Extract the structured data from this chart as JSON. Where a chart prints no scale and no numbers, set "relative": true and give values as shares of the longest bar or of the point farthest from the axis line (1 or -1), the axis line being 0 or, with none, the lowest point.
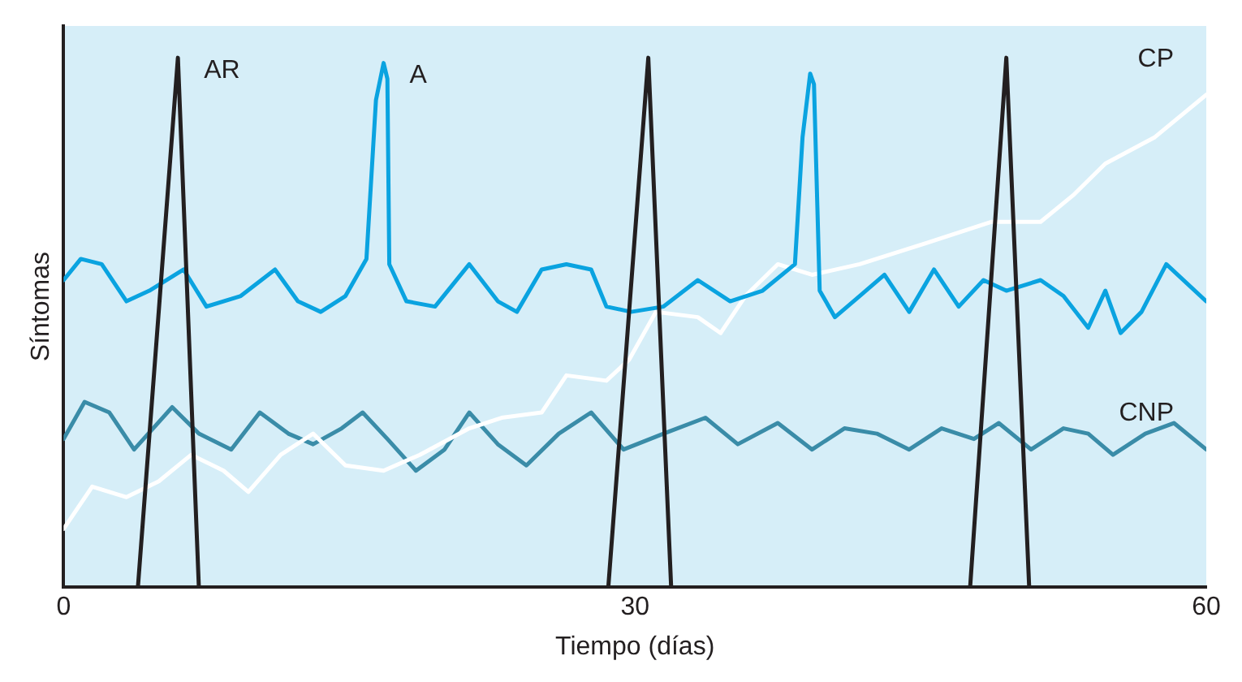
{
  "chart_data": {
    "type": "line",
    "xlabel": "Tiempo (días)",
    "ylabel": "Síntomas",
    "relative": true,
    "xlim": [
      0,
      60
    ],
    "xticks": [
      0,
      30,
      60
    ],
    "grid": false,
    "legend": false,
    "marker": "none",
    "line_style": "solid",
    "series": [
      {
        "name": "AR",
        "color": "#231f20",
        "x": [
          3.9,
          6.0,
          7.1,
          17,
          28.6,
          30.7,
          31.9,
          40,
          47.6,
          49.5,
          50.7
        ],
        "values": [
          0,
          1,
          0,
          null,
          0,
          1,
          0,
          null,
          0,
          1,
          0
        ]
      },
      {
        "name": "A",
        "color": "#0aa3e0",
        "x": [
          0,
          0.9,
          2,
          3.3,
          4.5,
          6.3,
          7.5,
          9.3,
          11.1,
          12.3,
          13.5,
          14.8,
          15.9,
          16.4,
          16.8,
          17,
          17.1,
          18,
          19.5,
          21.3,
          22.8,
          23.8,
          25.1,
          26.4,
          27.7,
          28.5,
          29.8,
          31.5,
          33.3,
          35,
          36.7,
          38.4,
          38.8,
          39.2,
          39.4,
          39.7,
          40.5,
          41.8,
          43.1,
          44.4,
          45.7,
          47,
          48.3,
          49.5,
          51.3,
          52.5,
          53.8,
          54.7,
          55.5,
          56.6,
          57.9,
          60
        ],
        "values": [
          0.58,
          0.62,
          0.61,
          0.54,
          0.56,
          0.6,
          0.53,
          0.55,
          0.6,
          0.54,
          0.52,
          0.55,
          0.62,
          0.92,
          0.99,
          0.96,
          0.61,
          0.54,
          0.53,
          0.61,
          0.54,
          0.52,
          0.6,
          0.61,
          0.6,
          0.53,
          0.52,
          0.53,
          0.58,
          0.54,
          0.56,
          0.61,
          0.85,
          0.97,
          0.95,
          0.56,
          0.51,
          0.55,
          0.59,
          0.52,
          0.6,
          0.53,
          0.58,
          0.56,
          0.58,
          0.55,
          0.49,
          0.56,
          0.48,
          0.52,
          0.61,
          0.54
        ]
      },
      {
        "name": "CP",
        "color": "#ffffff",
        "x": [
          0,
          1.5,
          3.3,
          5,
          6.7,
          8.4,
          9.7,
          11.4,
          13.1,
          14.8,
          16.8,
          18.7,
          21.3,
          23,
          25.1,
          26.4,
          28.5,
          29.7,
          31.1,
          33.3,
          34.5,
          35.8,
          37.5,
          39.3,
          41.8,
          45.3,
          47,
          48.7,
          51.3,
          53,
          54.7,
          57.3,
          60
        ],
        "values": [
          0.11,
          0.19,
          0.17,
          0.2,
          0.25,
          0.22,
          0.18,
          0.25,
          0.29,
          0.23,
          0.22,
          0.25,
          0.3,
          0.32,
          0.33,
          0.4,
          0.39,
          0.43,
          0.52,
          0.51,
          0.48,
          0.55,
          0.61,
          0.59,
          0.61,
          0.65,
          0.67,
          0.69,
          0.69,
          0.74,
          0.8,
          0.85,
          0.93
        ]
      },
      {
        "name": "CNP",
        "color": "#3a8ca8",
        "x": [
          0,
          1.1,
          2.4,
          3.7,
          5.7,
          7.1,
          8.8,
          10.3,
          11.8,
          13.1,
          14.6,
          15.7,
          17,
          18.5,
          20,
          21.3,
          22.8,
          24.3,
          26,
          27.7,
          29.4,
          31.5,
          33.7,
          35.4,
          37.5,
          39.3,
          41,
          42.7,
          44.4,
          46.1,
          47.8,
          49.1,
          50.8,
          52.5,
          53.8,
          55.1,
          56.8,
          58.3,
          60
        ],
        "values": [
          0.28,
          0.35,
          0.33,
          0.26,
          0.34,
          0.29,
          0.26,
          0.33,
          0.29,
          0.27,
          0.3,
          0.33,
          0.28,
          0.22,
          0.26,
          0.33,
          0.27,
          0.23,
          0.29,
          0.33,
          0.26,
          0.29,
          0.32,
          0.27,
          0.31,
          0.26,
          0.3,
          0.29,
          0.26,
          0.3,
          0.28,
          0.31,
          0.26,
          0.3,
          0.29,
          0.25,
          0.29,
          0.31,
          0.26
        ]
      }
    ]
  }
}
